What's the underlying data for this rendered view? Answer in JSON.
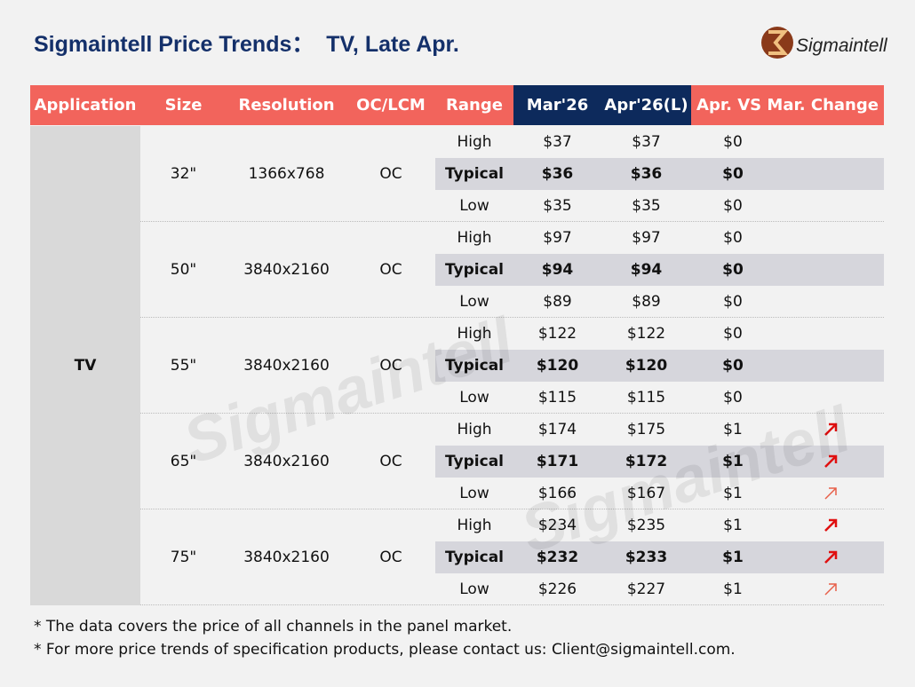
{
  "header": {
    "title": "Sigmaintell Price Trends：  TV, Late Apr.",
    "logo": "Sigmaintell"
  },
  "table": {
    "columns": [
      "Application",
      "Size",
      "Resolution",
      "OC/LCM",
      "Range",
      "Mar'26",
      "Apr'26(L)",
      "Apr. VS Mar. Change"
    ],
    "application": "TV",
    "groups": [
      {
        "size": "32\"",
        "resolution": "1366x768",
        "oc_lcm": "OC",
        "rows": [
          [
            "High",
            "$37",
            "$37",
            "$0"
          ],
          [
            "Typical",
            "$36",
            "$36",
            "$0"
          ],
          [
            "Low",
            "$35",
            "$35",
            "$0"
          ]
        ]
      },
      {
        "size": "50\"",
        "resolution": "3840x2160",
        "oc_lcm": "OC",
        "rows": [
          [
            "High",
            "$97",
            "$97",
            "$0"
          ],
          [
            "Typical",
            "$94",
            "$94",
            "$0"
          ],
          [
            "Low",
            "$89",
            "$89",
            "$0"
          ]
        ]
      },
      {
        "size": "55\"",
        "resolution": "3840x2160",
        "oc_lcm": "OC",
        "rows": [
          [
            "High",
            "$122",
            "$122",
            "$0"
          ],
          [
            "Typical",
            "$120",
            "$120",
            "$0"
          ],
          [
            "Low",
            "$115",
            "$115",
            "$0"
          ]
        ]
      },
      {
        "size": "65\"",
        "resolution": "3840x2160",
        "oc_lcm": "OC",
        "rows": [
          [
            "High",
            "$174",
            "$175",
            "$1"
          ],
          [
            "Typical",
            "$171",
            "$172",
            "$1"
          ],
          [
            "Low",
            "$166",
            "$167",
            "$1"
          ]
        ]
      },
      {
        "size": "75\"",
        "resolution": "3840x2160",
        "oc_lcm": "OC",
        "rows": [
          [
            "High",
            "$234",
            "$235",
            "$1"
          ],
          [
            "Typical",
            "$232",
            "$233",
            "$1"
          ],
          [
            "Low",
            "$226",
            "$227",
            "$1"
          ]
        ]
      }
    ]
  },
  "footnotes": [
    "* The data covers the price of all channels in the panel market.",
    "* For more price trends of specification products, please contact us: Client@sigmaintell.com."
  ],
  "watermark": "Sigmaintell"
}
